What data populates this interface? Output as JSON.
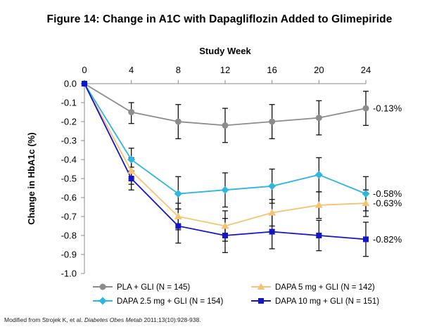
{
  "title": "Figure 14: Change in A1C with Dapagliflozin Added to Glimepiride",
  "footnote": {
    "prefix": "Modified from Strojek K, et al. ",
    "journal": "Diabetes Obes Metab",
    "suffix": " 2011;13(10):928-938."
  },
  "chart_data": {
    "type": "line",
    "title": "Figure 14: Change in A1C with Dapagliflozin Added to Glimepiride",
    "xlabel": "Study Week",
    "ylabel": "Change in HbA1c (%)",
    "xaxis_position": "top",
    "x": [
      0,
      4,
      8,
      12,
      16,
      20,
      24
    ],
    "x_ticks": [
      "0",
      "4",
      "8",
      "12",
      "16",
      "20",
      "24"
    ],
    "xlim": [
      0,
      24
    ],
    "ylim": [
      -1.0,
      0.0
    ],
    "y_ticks": [
      "0.0",
      "-0.1",
      "-0.2",
      "-0.3",
      "-0.4",
      "-0.5",
      "-0.6",
      "-0.7",
      "-0.8",
      "-0.9",
      "-1.0"
    ],
    "y_tick_values": [
      0.0,
      -0.1,
      -0.2,
      -0.3,
      -0.4,
      -0.5,
      -0.6,
      -0.7,
      -0.8,
      -0.9,
      -1.0
    ],
    "grid": false,
    "legend_position": "bottom",
    "series": [
      {
        "name": "PLA + GLI (N = 145)",
        "color": "#8c8c8c",
        "marker": "circle",
        "values": [
          0.0,
          -0.15,
          -0.2,
          -0.22,
          -0.2,
          -0.18,
          -0.13
        ],
        "error_low": [
          null,
          -0.21,
          -0.29,
          -0.31,
          -0.29,
          -0.27,
          -0.22
        ],
        "error_high": [
          null,
          -0.1,
          -0.11,
          -0.13,
          -0.11,
          -0.09,
          -0.04
        ],
        "end_label": "-0.13%"
      },
      {
        "name": "DAPA 5 mg + GLI (N = 142)",
        "color": "#f5c374",
        "marker": "triangle",
        "values": [
          0.0,
          -0.46,
          -0.7,
          -0.75,
          -0.68,
          -0.64,
          -0.63
        ],
        "error_low": [
          null,
          -0.53,
          -0.77,
          -0.83,
          -0.75,
          -0.71,
          -0.7
        ],
        "error_high": [
          null,
          -0.39,
          -0.63,
          -0.67,
          -0.61,
          -0.57,
          -0.56
        ],
        "end_label": "-0.63%"
      },
      {
        "name": "DAPA 2.5 mg + GLI (N = 154)",
        "color": "#2eb5e0",
        "marker": "diamond",
        "values": [
          0.0,
          -0.4,
          -0.58,
          -0.56,
          -0.54,
          -0.48,
          -0.58
        ],
        "error_low": [
          null,
          -0.46,
          -0.66,
          -0.65,
          -0.63,
          -0.57,
          -0.67
        ],
        "error_high": [
          null,
          -0.34,
          -0.49,
          -0.47,
          -0.45,
          -0.39,
          -0.49
        ],
        "end_label": "-0.58%"
      },
      {
        "name": "DAPA 10 mg + GLI (N = 151)",
        "color": "#1414c8",
        "marker": "square",
        "values": [
          0.0,
          -0.5,
          -0.75,
          -0.8,
          -0.78,
          -0.8,
          -0.82
        ],
        "error_low": [
          null,
          -0.56,
          -0.84,
          -0.89,
          -0.87,
          -0.88,
          -0.91
        ],
        "error_high": [
          null,
          -0.44,
          -0.66,
          -0.71,
          -0.69,
          -0.72,
          -0.73
        ],
        "end_label": "-0.82%"
      }
    ]
  }
}
